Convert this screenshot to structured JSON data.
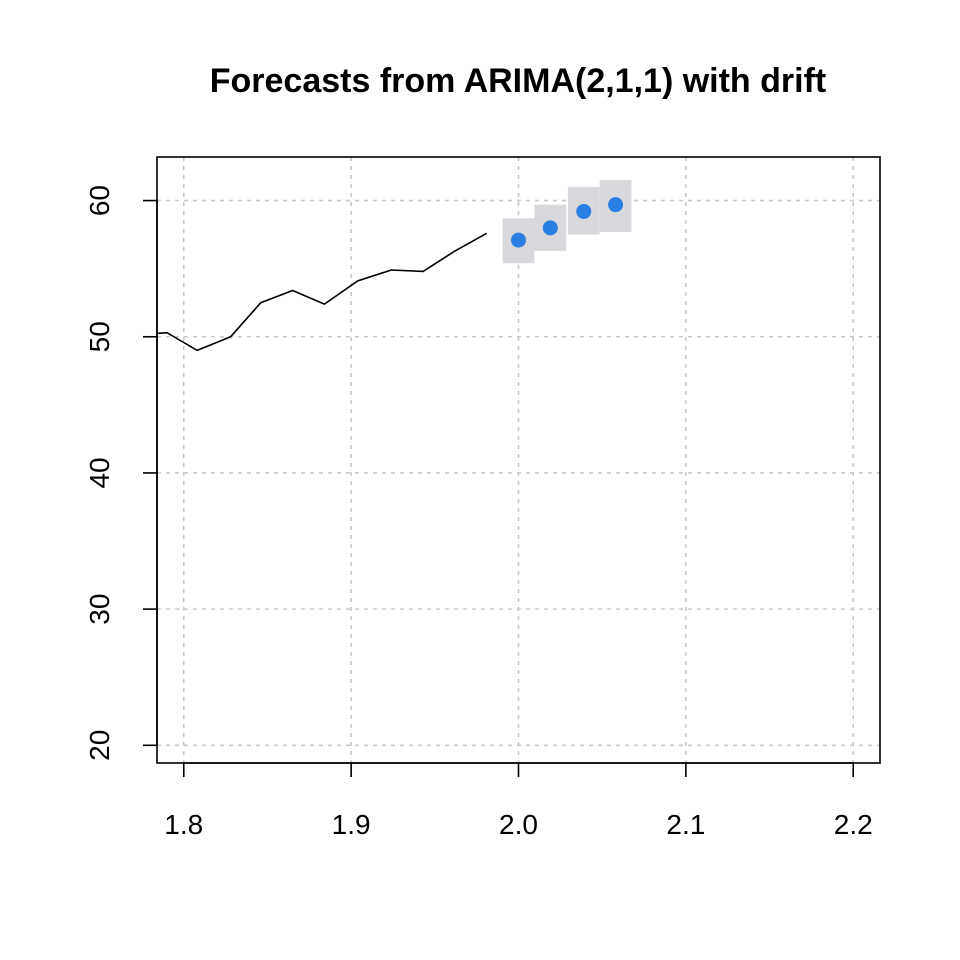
{
  "chart_data": {
    "type": "line",
    "title": "Forecasts from ARIMA(2,1,1) with drift",
    "xlabel": "",
    "ylabel": "",
    "xlim": [
      1.784,
      2.216
    ],
    "ylim": [
      18.7,
      63.2
    ],
    "xticks": [
      1.8,
      1.9,
      2.0,
      2.1,
      2.2
    ],
    "xtick_labels": [
      "1.8",
      "1.9",
      "2.0",
      "2.1",
      "2.2"
    ],
    "yticks": [
      20,
      30,
      40,
      50,
      60
    ],
    "ytick_labels": [
      "20",
      "30",
      "40",
      "50",
      "60"
    ],
    "grid": true,
    "series": [
      {
        "role": "history",
        "x": [
          1.78,
          1.79,
          1.808,
          1.828,
          1.846,
          1.865,
          1.884,
          1.904,
          1.924,
          1.943,
          1.962,
          1.981
        ],
        "values": [
          50.2,
          50.3,
          49.0,
          50.0,
          52.5,
          53.4,
          52.4,
          54.1,
          54.9,
          54.8,
          56.3,
          57.6
        ],
        "color": "#000000"
      },
      {
        "role": "forecast",
        "x": [
          2.0,
          2.019,
          2.039,
          2.058
        ],
        "values": [
          57.1,
          58.0,
          59.2,
          59.7
        ],
        "lower80": [
          56.8,
          57.6,
          58.9,
          59.4
        ],
        "upper80": [
          57.3,
          58.3,
          59.5,
          60.0
        ],
        "lower95": [
          55.4,
          56.3,
          57.5,
          57.7
        ],
        "upper95": [
          58.7,
          59.7,
          61.0,
          61.5
        ],
        "color": "#2b7fe0",
        "band80_color": "#b7b7c2",
        "band95_color": "#d9d9dd"
      }
    ]
  }
}
